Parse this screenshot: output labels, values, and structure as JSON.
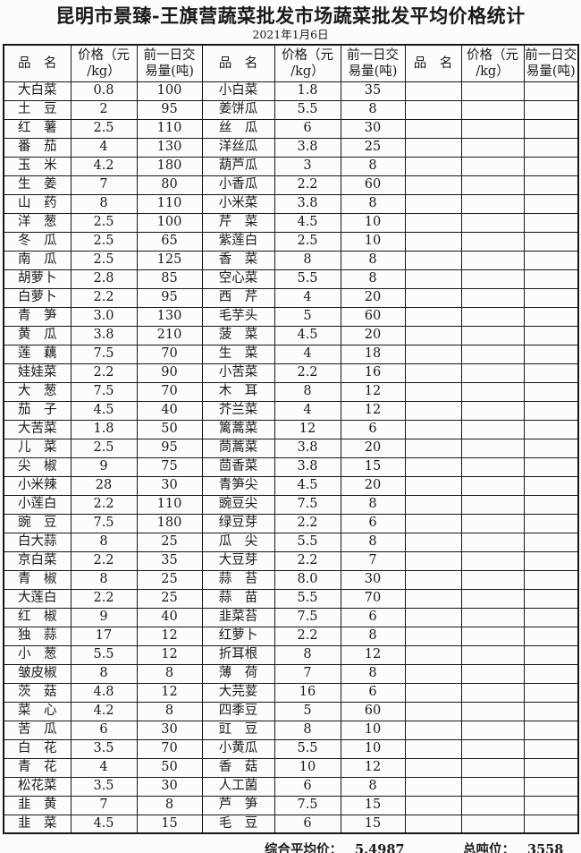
{
  "page": {
    "title": "昆明市景臻-王旗营蔬菜批发市场蔬菜批发平均价格统计",
    "date": "2021年1月6日"
  },
  "table": {
    "header": {
      "name": "品　名",
      "price_line1": "价格（元",
      "price_line2": "/kg）",
      "volume_line1": "前一日交",
      "volume_line2": "易量(吨)"
    },
    "left_rows": [
      [
        "大白菜",
        "0.8",
        "100"
      ],
      [
        "土　豆",
        "2",
        "95"
      ],
      [
        "红　薯",
        "2.5",
        "110"
      ],
      [
        "番　茄",
        "4",
        "130"
      ],
      [
        "玉　米",
        "4.2",
        "180"
      ],
      [
        "生　姜",
        "7",
        "80"
      ],
      [
        "山　药",
        "8",
        "110"
      ],
      [
        "洋　葱",
        "2.5",
        "100"
      ],
      [
        "冬　瓜",
        "2.5",
        "65"
      ],
      [
        "南　瓜",
        "2.5",
        "125"
      ],
      [
        "胡萝卜",
        "2.8",
        "85"
      ],
      [
        "白萝卜",
        "2.2",
        "95"
      ],
      [
        "青　笋",
        "3.0",
        "130"
      ],
      [
        "黄　瓜",
        "3.8",
        "210"
      ],
      [
        "莲　藕",
        "7.5",
        "70"
      ],
      [
        "娃娃菜",
        "2.2",
        "90"
      ],
      [
        "大　葱",
        "7.5",
        "70"
      ],
      [
        "茄　子",
        "4.5",
        "40"
      ],
      [
        "大苦菜",
        "1.8",
        "50"
      ],
      [
        "儿　菜",
        "2.5",
        "95"
      ],
      [
        "尖　椒",
        "9",
        "75"
      ],
      [
        "小米辣",
        "28",
        "30"
      ],
      [
        "小莲白",
        "2.2",
        "110"
      ],
      [
        "豌　豆",
        "7.5",
        "180"
      ],
      [
        "白大蒜",
        "8",
        "25"
      ],
      [
        "京白菜",
        "2.2",
        "35"
      ],
      [
        "青　椒",
        "8",
        "25"
      ],
      [
        "大莲白",
        "2.2",
        "25"
      ],
      [
        "红　椒",
        "9",
        "40"
      ],
      [
        "独　蒜",
        "17",
        "12"
      ],
      [
        "小　葱",
        "5.5",
        "12"
      ],
      [
        "皱皮椒",
        "8",
        "8"
      ],
      [
        "茨　菇",
        "4.8",
        "12"
      ],
      [
        "菜　心",
        "4.2",
        "8"
      ],
      [
        "苦　瓜",
        "6",
        "30"
      ],
      [
        "白　花",
        "3.5",
        "70"
      ],
      [
        "青　花",
        "4",
        "50"
      ],
      [
        "松花菜",
        "3.5",
        "30"
      ],
      [
        "韭　黄",
        "7",
        "8"
      ],
      [
        "韭　菜",
        "4.5",
        "15"
      ]
    ],
    "middle_rows": [
      [
        "小白菜",
        "1.8",
        "35"
      ],
      [
        "姜饼瓜",
        "5.5",
        "8"
      ],
      [
        "丝　瓜",
        "6",
        "30"
      ],
      [
        "洋丝瓜",
        "3.8",
        "25"
      ],
      [
        "葫芦瓜",
        "3",
        "8"
      ],
      [
        "小香瓜",
        "2.2",
        "60"
      ],
      [
        "小米菜",
        "3.8",
        "8"
      ],
      [
        "芹　菜",
        "4.5",
        "10"
      ],
      [
        "紫莲白",
        "2.5",
        "10"
      ],
      [
        "香　菜",
        "8",
        "8"
      ],
      [
        "空心菜",
        "5.5",
        "8"
      ],
      [
        "西　芹",
        "4",
        "20"
      ],
      [
        "毛芋头",
        "5",
        "60"
      ],
      [
        "菠　菜",
        "4.5",
        "20"
      ],
      [
        "生　菜",
        "4",
        "18"
      ],
      [
        "小苦菜",
        "2.2",
        "16"
      ],
      [
        "木　耳",
        "8",
        "12"
      ],
      [
        "芥兰菜",
        "4",
        "12"
      ],
      [
        "篱蒿菜",
        "12",
        "6"
      ],
      [
        "茼蒿菜",
        "3.8",
        "20"
      ],
      [
        "茴香菜",
        "3.8",
        "15"
      ],
      [
        "青笋尖",
        "4.5",
        "20"
      ],
      [
        "豌豆尖",
        "7.5",
        "8"
      ],
      [
        "绿豆芽",
        "2.2",
        "6"
      ],
      [
        "瓜　尖",
        "5.5",
        "8"
      ],
      [
        "大豆芽",
        "2.2",
        "7"
      ],
      [
        "蒜　苔",
        "8.0",
        "30"
      ],
      [
        "蒜　苗",
        "5.5",
        "70"
      ],
      [
        "韭菜苔",
        "7.5",
        "6"
      ],
      [
        "红萝卜",
        "2.2",
        "8"
      ],
      [
        "折耳根",
        "8",
        "12"
      ],
      [
        "薄　荷",
        "7",
        "8"
      ],
      [
        "大芫荽",
        "16",
        "6"
      ],
      [
        "四季豆",
        "5",
        "60"
      ],
      [
        "豇　豆",
        "8",
        "10"
      ],
      [
        "小黄瓜",
        "5.5",
        "10"
      ],
      [
        "香　菇",
        "10",
        "12"
      ],
      [
        "人工菌",
        "6",
        "8"
      ],
      [
        "芦　笋",
        "7.5",
        "15"
      ],
      [
        "毛　豆",
        "6",
        "15"
      ]
    ],
    "empty_rows": 40
  },
  "summary": {
    "avg_label": "综合平均价：",
    "avg_value": "5.4987",
    "tonnage_label": "总吨位：",
    "tonnage_value": "3558"
  }
}
